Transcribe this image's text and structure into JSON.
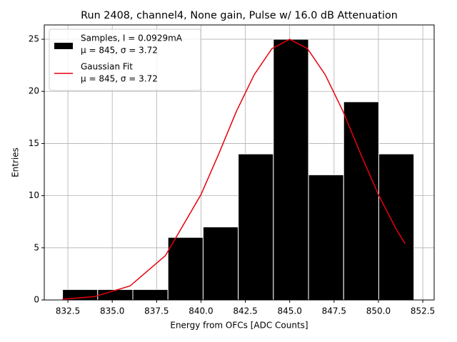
{
  "chart_data": {
    "type": "histogram",
    "title": "Run 2408, channel4, None gain, Pulse w/ 16.0 dB Attenuation",
    "xlabel": "Energy from OFCs [ADC Counts]",
    "ylabel": "Entries",
    "bins": [
      832.2,
      834.18,
      836.16,
      838.14,
      840.12,
      842.1,
      844.08,
      846.06,
      848.04,
      850.02,
      852.0
    ],
    "counts": [
      1,
      1,
      1,
      6,
      7,
      14,
      25,
      12,
      19,
      14
    ],
    "color": "#000000",
    "name": "Samples, I = 0.0929mA",
    "stats": "μ = 845, σ = 3.72",
    "fit": {
      "name": "Gaussian Fit",
      "stats": "μ = 845, σ = 3.72",
      "color": "#e8000b",
      "x": [
        832.2,
        834,
        836,
        838,
        840,
        841,
        842,
        843,
        844,
        845,
        846,
        847,
        848,
        849,
        850,
        851,
        851.5
      ],
      "y": [
        0.07,
        0.32,
        1.34,
        4.26,
        10.1,
        14.0,
        18.1,
        21.6,
        24.1,
        25,
        24.1,
        21.6,
        18.1,
        14.0,
        10.1,
        6.8,
        5.4
      ]
    },
    "xlim": [
      831.17,
      853.14
    ],
    "ylim": [
      0,
      26.37
    ],
    "xticks": [
      832.5,
      {
        "value": 835,
        "label": "835.0"
      },
      837.5,
      {
        "value": 840,
        "label": "840.0"
      },
      842.5,
      {
        "value": 845,
        "label": "845.0"
      },
      847.5,
      {
        "value": 850,
        "label": "850.0"
      },
      852.5
    ],
    "yticks": [
      0,
      5,
      10,
      15,
      20,
      25
    ],
    "grid": true,
    "legend": "upper left"
  }
}
